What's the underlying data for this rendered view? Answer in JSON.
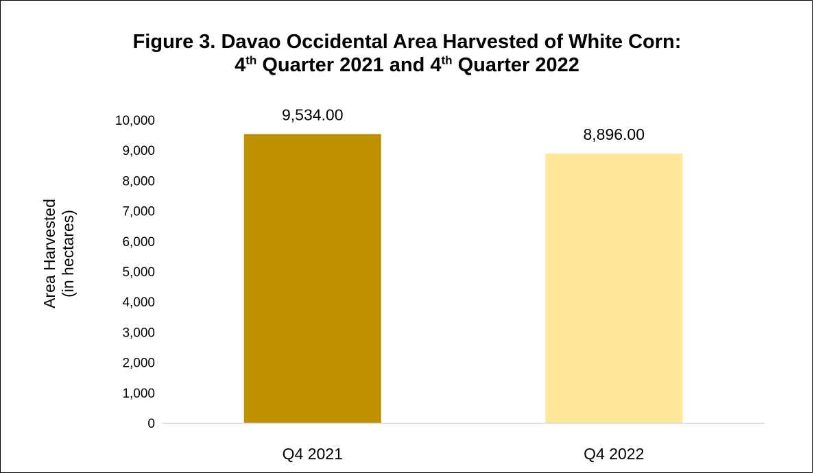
{
  "chart_data": {
    "type": "bar",
    "title_line1": "Figure 3. Davao Occidental Area Harvested of White Corn:",
    "title_line2": {
      "part1": "4",
      "sup1": "th",
      "part2": " Quarter 2021 and 4",
      "sup2": "th",
      "part3": " Quarter 2022"
    },
    "ylabel_line1": "Area Harvested",
    "ylabel_line2": "(in hectares)",
    "xlabel": "",
    "categories": [
      "Q4 2021",
      "Q4 2022"
    ],
    "values": [
      9534.0,
      8896.0
    ],
    "data_labels": [
      "9,534.00",
      "8,896.00"
    ],
    "colors": [
      "#BF9000",
      "#FFE699"
    ],
    "ylim": [
      0,
      10000
    ],
    "yticks": [
      0,
      1000,
      2000,
      3000,
      4000,
      5000,
      6000,
      7000,
      8000,
      9000,
      10000
    ],
    "ytick_labels": [
      "0",
      "1,000",
      "2,000",
      "3,000",
      "4,000",
      "5,000",
      "6,000",
      "7,000",
      "8,000",
      "9,000",
      "10,000"
    ],
    "grid": false,
    "legend": "none"
  }
}
